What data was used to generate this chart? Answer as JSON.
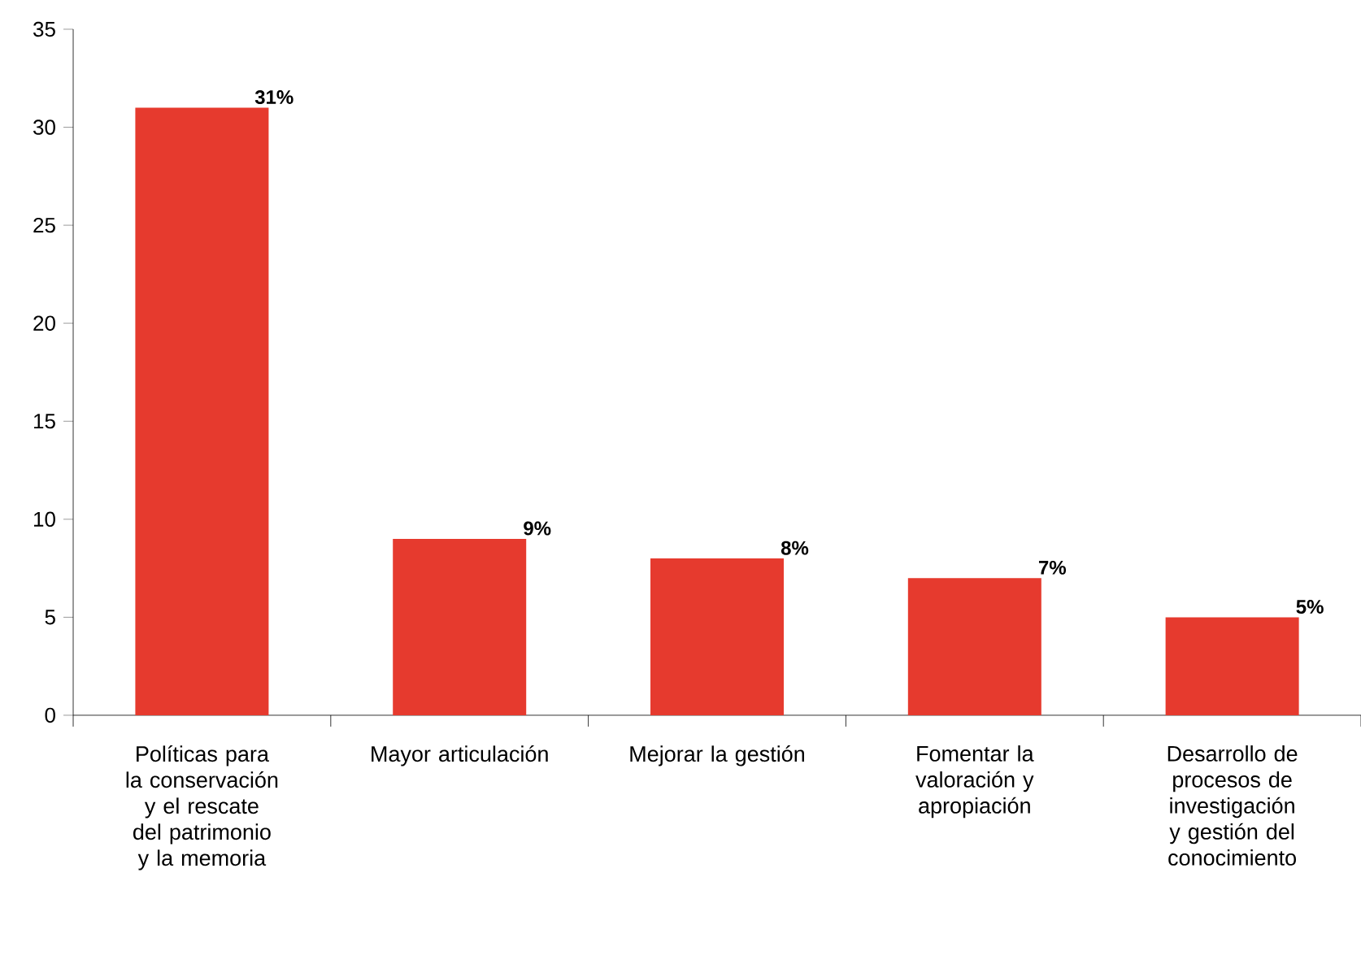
{
  "chart_data": {
    "type": "bar",
    "categories": [
      "Políticas para la conservación y el rescate del patrimonio y la memoria",
      "Mayor articulación",
      "Mejorar la gestión",
      "Fomentar la valoración y apropiación",
      "Desarrollo de procesos de investigación y gestión del conocimiento"
    ],
    "values": [
      31,
      9,
      8,
      7,
      5
    ],
    "value_labels": [
      "31%",
      "9%",
      "8%",
      "7%",
      "5%"
    ],
    "color": "#e63a2e",
    "ylim": [
      0,
      35
    ],
    "yticks": [
      0,
      5,
      10,
      15,
      20,
      25,
      30,
      35
    ],
    "grid": false
  }
}
